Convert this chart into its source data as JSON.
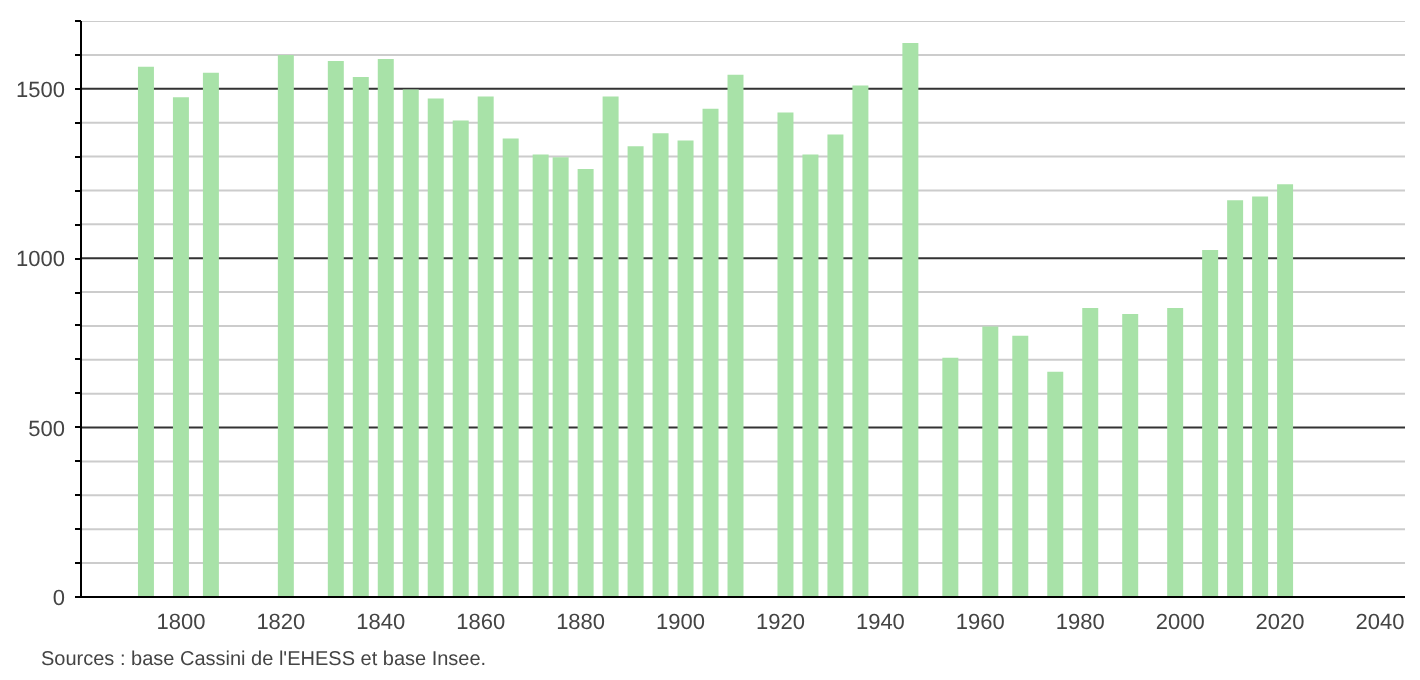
{
  "chart_data": {
    "type": "bar",
    "x": [
      1793,
      1800,
      1806,
      1821,
      1831,
      1836,
      1841,
      1846,
      1851,
      1856,
      1861,
      1866,
      1872,
      1876,
      1881,
      1886,
      1891,
      1896,
      1901,
      1906,
      1911,
      1921,
      1926,
      1931,
      1936,
      1946,
      1954,
      1962,
      1968,
      1975,
      1982,
      1990,
      1999,
      2006,
      2011,
      2016,
      2021
    ],
    "values": [
      1565,
      1475,
      1547,
      1600,
      1582,
      1535,
      1588,
      1498,
      1471,
      1406,
      1477,
      1353,
      1306,
      1298,
      1263,
      1477,
      1330,
      1369,
      1347,
      1441,
      1541,
      1430,
      1306,
      1365,
      1510,
      1635,
      706,
      798,
      771,
      665,
      853,
      835,
      853,
      1024,
      1171,
      1182,
      1218
    ],
    "color": "#a8e2a8",
    "xlim": [
      1780,
      2045
    ],
    "xticks": [
      1800,
      1820,
      1840,
      1860,
      1880,
      1900,
      1920,
      1940,
      1960,
      1980,
      2000,
      2020,
      2040
    ],
    "ylim": [
      0,
      1700
    ],
    "yticks": [
      0,
      {
        "value": 100,
        "label": null
      },
      {
        "value": 200,
        "label": null
      },
      {
        "value": 300,
        "label": null
      },
      {
        "value": 400,
        "label": null
      },
      500,
      {
        "value": 600,
        "label": null
      },
      {
        "value": 700,
        "label": null
      },
      {
        "value": 800,
        "label": null
      },
      {
        "value": 900,
        "label": null
      },
      1000,
      {
        "value": 1100,
        "label": null
      },
      {
        "value": 1200,
        "label": null
      },
      {
        "value": 1300,
        "label": null
      },
      {
        "value": 1400,
        "label": null
      },
      1500,
      {
        "value": 1600,
        "label": null
      },
      {
        "value": 1700,
        "label": null
      }
    ],
    "grid": "y",
    "annotations": [
      "Sources : base Cassini de l'EHESS et base Insee."
    ]
  }
}
